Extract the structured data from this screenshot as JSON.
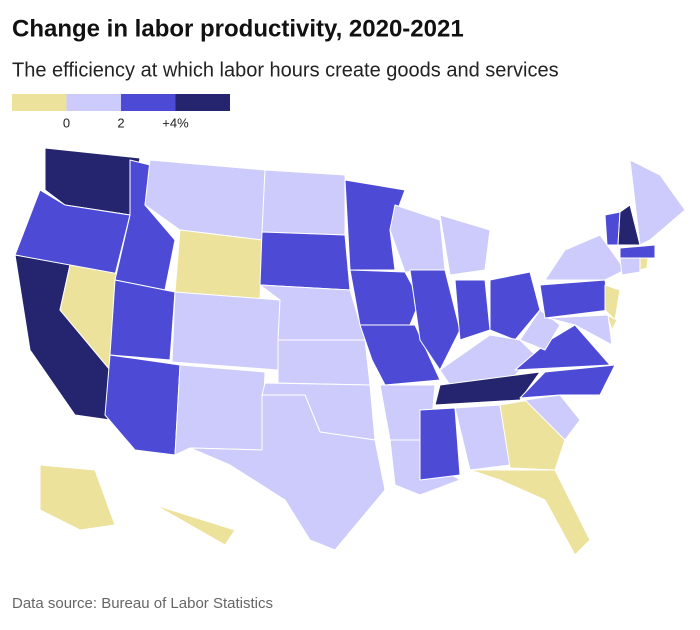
{
  "header": {
    "title": "Change in labor productivity, 2020-2021",
    "subtitle": "The efficiency at which labor hours create goods and services"
  },
  "legend": {
    "colors": [
      "#ece29c",
      "#cccbfb",
      "#4d4bd6",
      "#25246e"
    ],
    "ticks": [
      {
        "value": 0,
        "label": "0"
      },
      {
        "value": 2,
        "label": "2"
      },
      {
        "value": 4,
        "label": "+4%"
      }
    ]
  },
  "footer": {
    "source": "Data source: Bureau of Labor Statistics"
  }
}
